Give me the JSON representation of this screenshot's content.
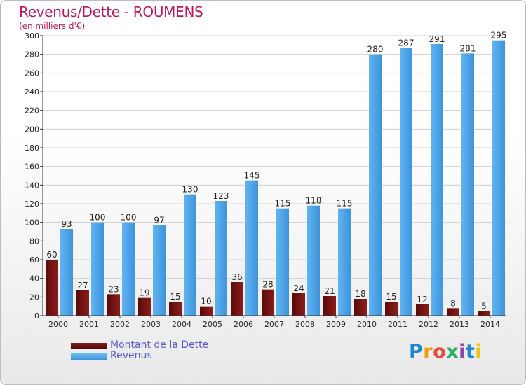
{
  "header": {
    "title": "Revenus/Dette - ROUMENS",
    "subtitle": "(en milliers d'€)"
  },
  "chart_data": {
    "type": "bar",
    "categories": [
      "2000",
      "2001",
      "2002",
      "2003",
      "2004",
      "2005",
      "2006",
      "2007",
      "2008",
      "2009",
      "2010",
      "2011",
      "2012",
      "2013",
      "2014"
    ],
    "series": [
      {
        "name": "Montant de la Dette",
        "color": "#7a1515",
        "values": [
          60,
          27,
          23,
          19,
          15,
          10,
          36,
          28,
          24,
          21,
          18,
          15,
          12,
          8,
          5
        ]
      },
      {
        "name": "Revenus",
        "color": "#4ea6e8",
        "values": [
          93,
          100,
          100,
          97,
          130,
          123,
          145,
          115,
          118,
          115,
          280,
          287,
          291,
          281,
          295
        ]
      }
    ],
    "y_ticks": [
      "0",
      "20",
      "40",
      "60",
      "80",
      "100",
      "120",
      "140",
      "160",
      "180",
      "200",
      "220",
      "240",
      "260",
      "280",
      "300"
    ],
    "ylim": [
      0,
      300
    ],
    "grid": true,
    "legend_placement": "bottom-left"
  },
  "branding": {
    "logo_text": "Proxiti",
    "logo_colors": [
      "#1e88c8",
      "#f39c12",
      "#e74c3c",
      "#27ae60",
      "#8e44ad",
      "#1e88c8",
      "#f1c40f"
    ]
  }
}
